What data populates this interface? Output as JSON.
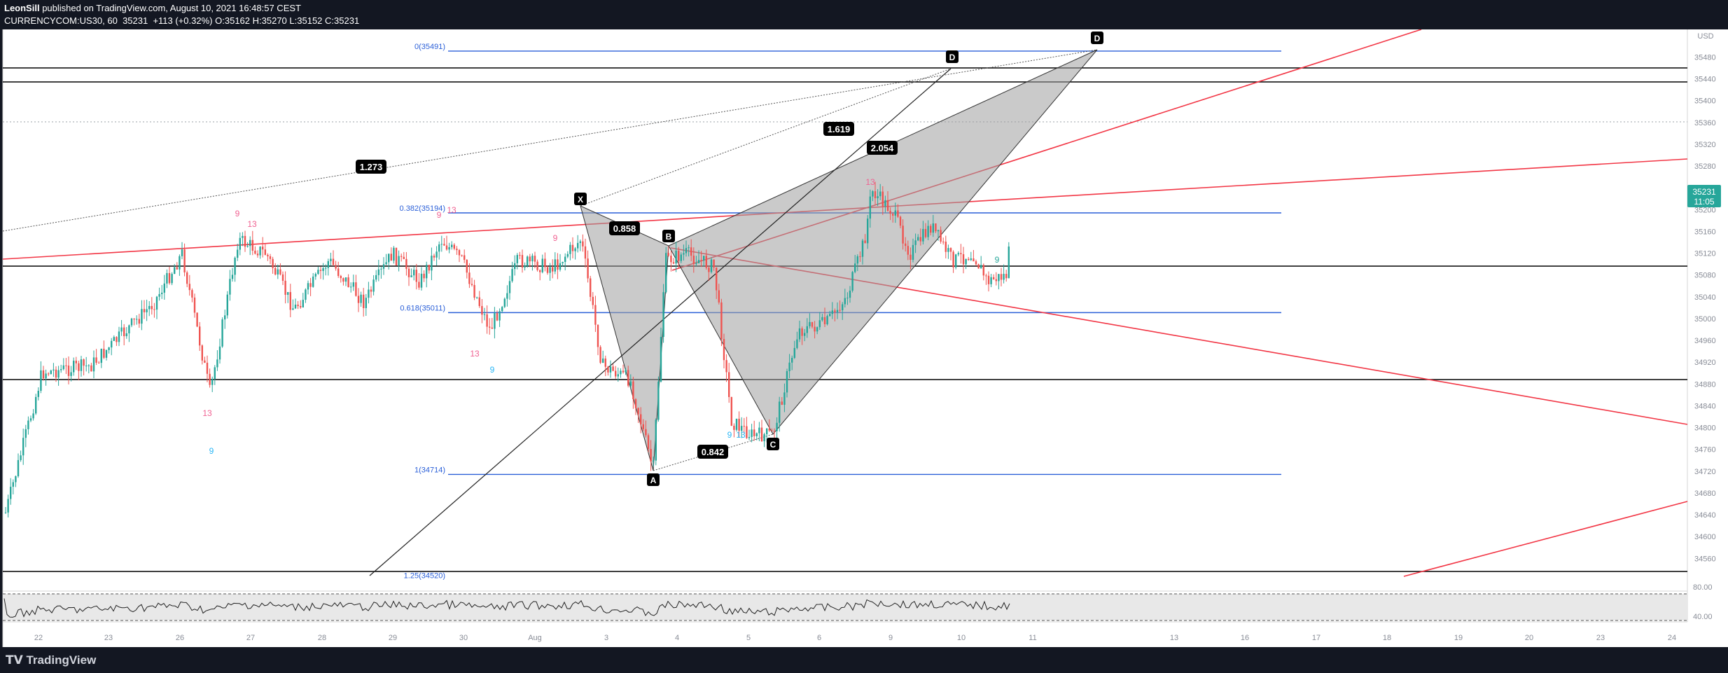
{
  "header": {
    "author": "LeonSill",
    "published": "published on TradingView.com, August 10, 2021 16:48:57 CEST",
    "symbol": "CURRENCYCOM:US30, 60",
    "last": "35231",
    "change": "+113 (+0.32%)",
    "o_label": "O:",
    "o": "35162",
    "h_label": "H:",
    "h": "35270",
    "l_label": "L:",
    "l": "35152",
    "c_label": "C:",
    "c": "35231"
  },
  "footer": {
    "brand": "TradingView"
  },
  "colors": {
    "background": "#ffffff",
    "up": "#26a69a",
    "down": "#ef5350",
    "fib": "#2a5fd8",
    "trend": "#f23645",
    "pattern": "#999999"
  },
  "chart_data": {
    "type": "candlestick",
    "y_unit": "USD",
    "ylim": [
      34480,
      35540
    ],
    "y_ticks": [
      35480,
      35440,
      35400,
      35360,
      35320,
      35280,
      35240,
      35200,
      35160,
      35120,
      35080,
      35040,
      35000,
      34960,
      34920,
      34880,
      34840,
      34800,
      34760,
      34720,
      34680,
      34640,
      34600,
      34560
    ],
    "x_labels": [
      "22",
      "23",
      "26",
      "27",
      "28",
      "29",
      "30",
      "Aug",
      "3",
      "4",
      "5",
      "6",
      "9",
      "10",
      "11",
      "13",
      "16",
      "17",
      "18",
      "19",
      "20",
      "23",
      "24"
    ],
    "last_price": "35231",
    "countdown": "11:05",
    "fib_levels": [
      {
        "label": "0(35491)",
        "value": 35491
      },
      {
        "label": "0.382(35194)",
        "value": 35194
      },
      {
        "label": "0.618(35011)",
        "value": 35011
      },
      {
        "label": "1(34714)",
        "value": 34714
      },
      {
        "label": "1.25(34520)",
        "value": 34520
      }
    ],
    "pattern_points": [
      "X",
      "A",
      "B",
      "C",
      "D",
      "D"
    ],
    "ratios": [
      "1.273",
      "0.858",
      "1.619",
      "2.054",
      "0.842"
    ],
    "sequence_labels": [
      "9",
      "13",
      "9",
      "13",
      "9",
      "13",
      "9",
      "13",
      "9",
      "9",
      "13",
      "13",
      "9"
    ],
    "oscillator": {
      "levels": [
        "80.00",
        "40.00"
      ]
    }
  }
}
